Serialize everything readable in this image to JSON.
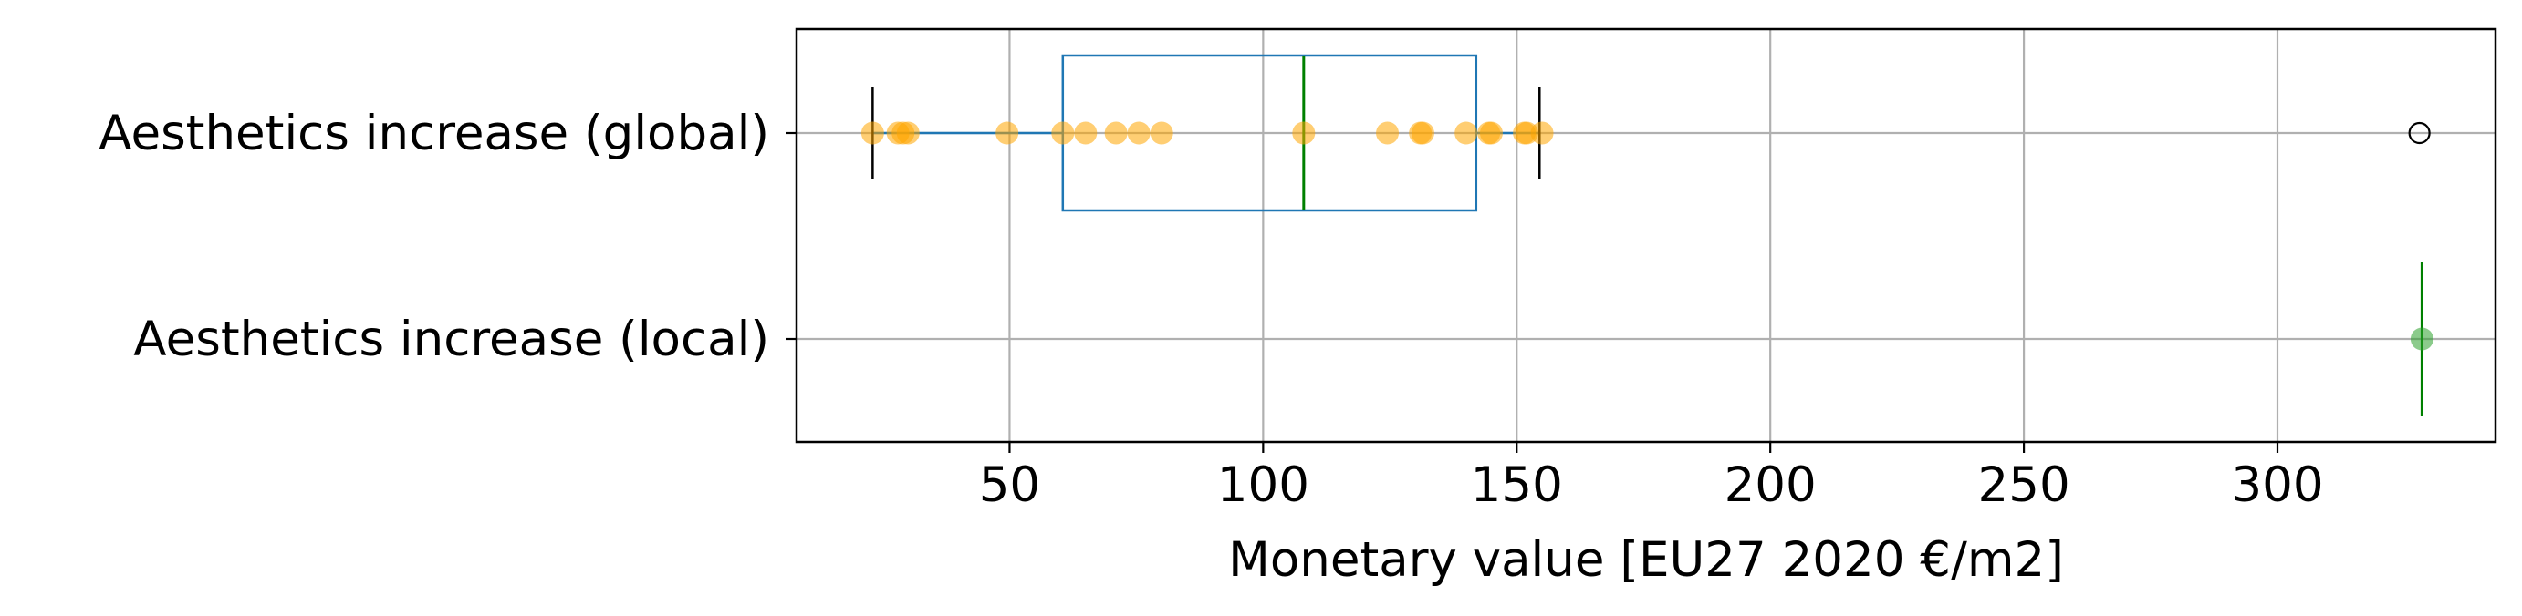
{
  "chart_data": {
    "type": "boxplot",
    "title": "",
    "xlabel": "Monetary value [EU27 2020 €/m2]",
    "ylabel": "",
    "xlim": [
      8,
      343
    ],
    "x_ticks": [
      50,
      100,
      150,
      200,
      250,
      300
    ],
    "x_tick_labels": [
      "50",
      "100",
      "150",
      "200",
      "250",
      "300"
    ],
    "grid": true,
    "categories": [
      "Aesthetics increase (global)",
      "Aesthetics increase (local)"
    ],
    "series": [
      {
        "name": "Aesthetics increase (global)",
        "box": {
          "whisker_low": 23,
          "q1": 60.5,
          "median": 108,
          "q3": 142,
          "whisker_high": 154.5
        },
        "outliers": [
          328
        ],
        "points": [
          23,
          28,
          29,
          30,
          49.5,
          60.5,
          65,
          71,
          75.5,
          80,
          108,
          124.5,
          131,
          131.5,
          140,
          144.5,
          145,
          151.5,
          152,
          155
        ],
        "point_color": "#ffa500",
        "box_color": "#1f77b4",
        "median_color": "#008000"
      },
      {
        "name": "Aesthetics increase (local)",
        "box": {
          "whisker_low": 328.5,
          "q1": 328.5,
          "median": 328.5,
          "q3": 328.5,
          "whisker_high": 328.5
        },
        "outliers": [],
        "points": [
          328.5
        ],
        "point_color": "#2ca02c",
        "box_color": "#1f77b4",
        "median_color": "#008000"
      }
    ]
  }
}
